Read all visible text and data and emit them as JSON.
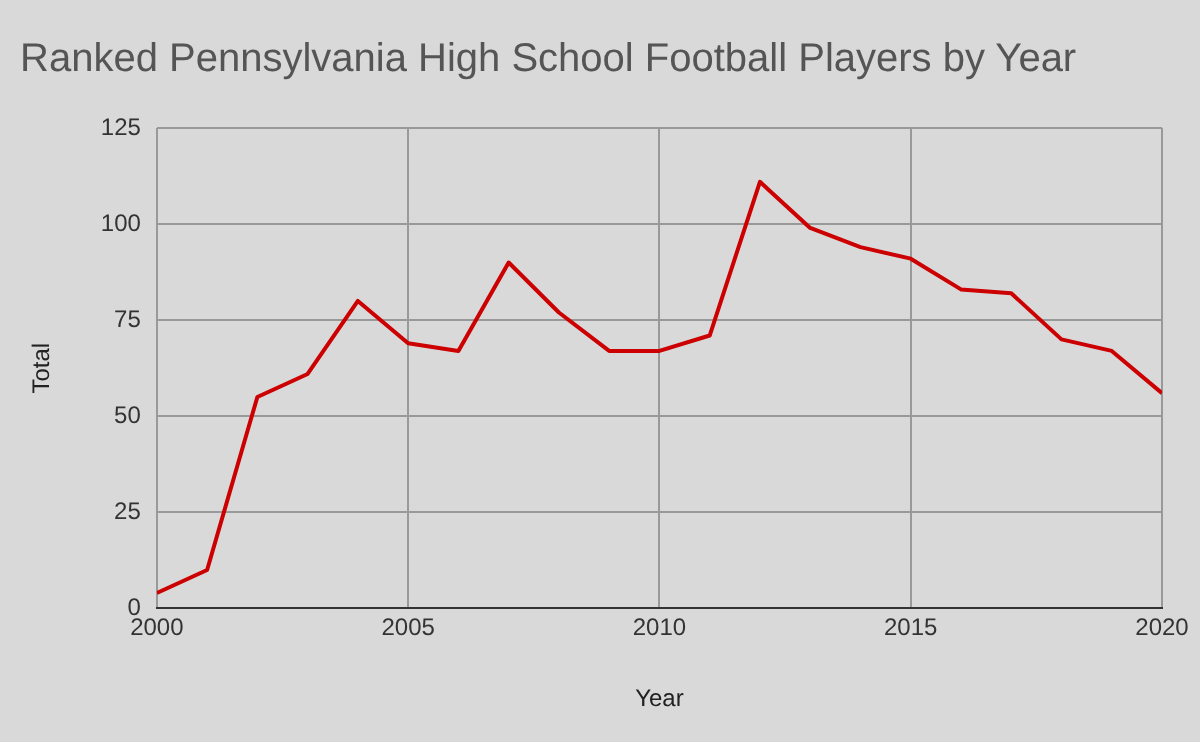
{
  "chart_data": {
    "type": "line",
    "title": "Ranked Pennsylvania High School Football Players by Year",
    "xlabel": "Year",
    "ylabel": "Total",
    "x": [
      2000,
      2001,
      2002,
      2003,
      2004,
      2005,
      2006,
      2007,
      2008,
      2009,
      2010,
      2011,
      2012,
      2013,
      2014,
      2015,
      2016,
      2017,
      2018,
      2019,
      2020
    ],
    "series": [
      {
        "color": "#cc0000",
        "values": [
          4,
          10,
          55,
          61,
          80,
          69,
          67,
          90,
          77,
          67,
          67,
          71,
          111,
          99,
          94,
          91,
          83,
          82,
          70,
          67,
          56
        ]
      }
    ],
    "xlim": [
      2000,
      2020
    ],
    "xticks": [
      2000,
      2005,
      2010,
      2015,
      2020
    ],
    "ylim": [
      0,
      125
    ],
    "yticks": [
      0,
      25,
      50,
      75,
      100,
      125
    ],
    "grid": true,
    "legend": false,
    "marker": "none",
    "line_style": "solid"
  }
}
